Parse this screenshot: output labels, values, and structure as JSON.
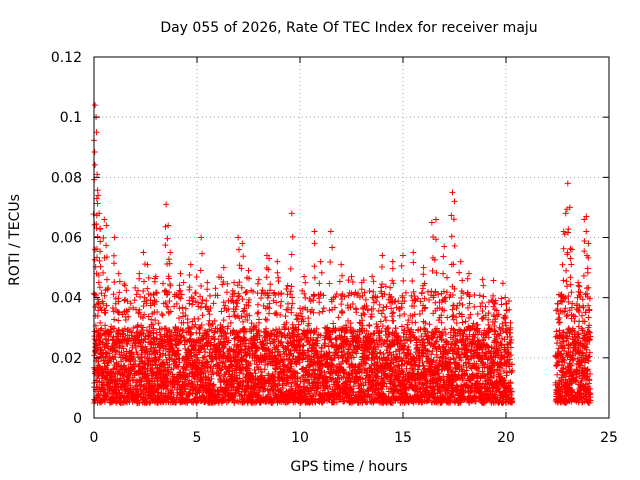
{
  "chart_data": {
    "type": "scatter",
    "title": "Day 055 of 2026, Rate Of TEC Index for receiver maju",
    "xlabel": "GPS time / hours",
    "ylabel": "ROTI / TECUs",
    "xlim": [
      0,
      25
    ],
    "ylim": [
      0,
      0.12
    ],
    "xticks": [
      0,
      5,
      10,
      15,
      20,
      25
    ],
    "xtick_labels": [
      "0",
      "5",
      "10",
      "15",
      "20",
      "25"
    ],
    "yticks": [
      0,
      0.02,
      0.04,
      0.06,
      0.08,
      0.1,
      0.12
    ],
    "ytick_labels": [
      "0",
      "0.02",
      "0.04",
      "0.06",
      "0.08",
      "0.1",
      "0.12"
    ],
    "grid": true,
    "marker": "+",
    "series": [
      {
        "name": "ROTI",
        "color": "#ff0000",
        "dense_band": {
          "segments": [
            [
              0.0,
              20.3
            ],
            [
              22.4,
              24.1
            ]
          ],
          "typical_range": [
            0.005,
            0.03
          ]
        },
        "spikes": [
          [
            0.05,
            0.104
          ],
          [
            0.1,
            0.1
          ],
          [
            0.12,
            0.095
          ],
          [
            0.15,
            0.081
          ],
          [
            0.2,
            0.074
          ],
          [
            0.25,
            0.068
          ],
          [
            0.3,
            0.063
          ],
          [
            0.5,
            0.066
          ],
          [
            0.6,
            0.064
          ],
          [
            1.0,
            0.06
          ],
          [
            1.2,
            0.048
          ],
          [
            1.5,
            0.044
          ],
          [
            2.2,
            0.048
          ],
          [
            2.4,
            0.055
          ],
          [
            2.6,
            0.051
          ],
          [
            3.0,
            0.047
          ],
          [
            3.5,
            0.071
          ],
          [
            3.6,
            0.064
          ],
          [
            3.7,
            0.055
          ],
          [
            4.2,
            0.048
          ],
          [
            4.7,
            0.051
          ],
          [
            5.2,
            0.06
          ],
          [
            5.5,
            0.045
          ],
          [
            6.3,
            0.05
          ],
          [
            6.8,
            0.045
          ],
          [
            7.0,
            0.06
          ],
          [
            7.2,
            0.058
          ],
          [
            7.5,
            0.049
          ],
          [
            8.0,
            0.046
          ],
          [
            8.4,
            0.054
          ],
          [
            8.5,
            0.053
          ],
          [
            8.9,
            0.052
          ],
          [
            9.4,
            0.044
          ],
          [
            9.6,
            0.068
          ],
          [
            10.2,
            0.047
          ],
          [
            10.7,
            0.062
          ],
          [
            11.0,
            0.052
          ],
          [
            11.5,
            0.062
          ],
          [
            12.0,
            0.051
          ],
          [
            12.5,
            0.047
          ],
          [
            13.0,
            0.045
          ],
          [
            13.5,
            0.047
          ],
          [
            14.0,
            0.054
          ],
          [
            14.5,
            0.052
          ],
          [
            15.0,
            0.054
          ],
          [
            15.5,
            0.055
          ],
          [
            16.0,
            0.05
          ],
          [
            16.4,
            0.065
          ],
          [
            16.6,
            0.066
          ],
          [
            17.0,
            0.057
          ],
          [
            17.4,
            0.075
          ],
          [
            17.5,
            0.072
          ],
          [
            17.8,
            0.052
          ],
          [
            18.2,
            0.048
          ],
          [
            18.9,
            0.044
          ],
          [
            19.5,
            0.039
          ],
          [
            20.0,
            0.038
          ],
          [
            22.5,
            0.038
          ],
          [
            22.8,
            0.062
          ],
          [
            22.9,
            0.068
          ],
          [
            23.0,
            0.078
          ],
          [
            23.1,
            0.07
          ],
          [
            23.2,
            0.056
          ],
          [
            23.5,
            0.045
          ],
          [
            23.8,
            0.066
          ],
          [
            23.9,
            0.067
          ],
          [
            24.0,
            0.058
          ]
        ]
      }
    ]
  }
}
